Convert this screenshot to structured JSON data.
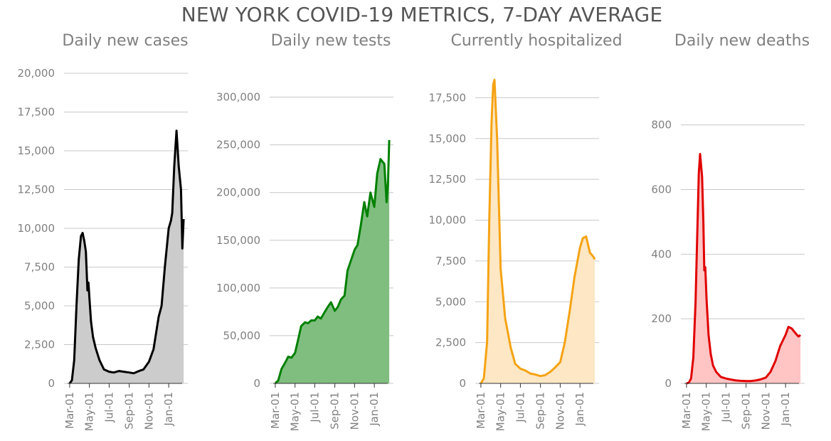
{
  "figure_title": "NEW YORK COVID-19 METRICS, 7-DAY AVERAGE",
  "chart_data": [
    {
      "type": "area",
      "title": "Daily new cases",
      "color": "#000000",
      "fill": "#cccccc",
      "ylim": [
        0,
        20000
      ],
      "yticks": [
        0,
        2500,
        5000,
        7500,
        10000,
        12500,
        15000,
        17500,
        20000
      ],
      "ytick_labels": [
        "0",
        "2,500",
        "5,000",
        "7,500",
        "10,000",
        "12,500",
        "15,000",
        "17,500",
        "20,000"
      ],
      "xticks": [
        "Mar-01",
        "May-01",
        "Jul-01",
        "Sep-01",
        "Nov-01",
        "Jan-01"
      ],
      "series": [
        {
          "x": [
            "2020-03-01",
            "2020-03-08",
            "2020-03-15",
            "2020-03-22",
            "2020-03-29",
            "2020-04-05",
            "2020-04-10",
            "2020-04-15",
            "2020-04-20",
            "2020-04-25",
            "2020-04-28",
            "2020-05-01",
            "2020-05-06",
            "2020-05-12",
            "2020-05-20",
            "2020-06-01",
            "2020-06-15",
            "2020-07-01",
            "2020-07-15",
            "2020-08-01",
            "2020-08-15",
            "2020-09-01",
            "2020-09-15",
            "2020-10-01",
            "2020-10-15",
            "2020-11-01",
            "2020-11-15",
            "2020-12-01",
            "2020-12-10",
            "2020-12-20",
            "2021-01-01",
            "2021-01-08",
            "2021-01-12",
            "2021-01-18",
            "2021-01-25",
            "2021-02-01",
            "2021-02-08",
            "2021-02-12",
            "2021-02-16"
          ],
          "y": [
            0,
            200,
            1500,
            5000,
            8000,
            9500,
            9700,
            9200,
            8500,
            6000,
            6500,
            5500,
            4000,
            3000,
            2300,
            1500,
            900,
            750,
            700,
            800,
            750,
            700,
            650,
            800,
            900,
            1400,
            2200,
            4300,
            5000,
            7500,
            10000,
            10500,
            11000,
            14000,
            16300,
            14000,
            12500,
            8700,
            10600
          ]
        }
      ]
    },
    {
      "type": "area",
      "title": "Daily new tests",
      "color": "#008000",
      "fill": "#80be80",
      "ylim": [
        0,
        325000
      ],
      "yticks": [
        0,
        50000,
        100000,
        150000,
        200000,
        250000,
        300000
      ],
      "ytick_labels": [
        "0",
        "50,000",
        "100,000",
        "150,000",
        "200,000",
        "250,000",
        "300,000"
      ],
      "xticks": [
        "Mar-01",
        "May-01",
        "Jul-01",
        "Sep-01",
        "Nov-01",
        "Jan-01"
      ],
      "series": [
        {
          "x": [
            "2020-03-01",
            "2020-03-10",
            "2020-03-20",
            "2020-04-01",
            "2020-04-10",
            "2020-04-20",
            "2020-05-01",
            "2020-05-10",
            "2020-05-20",
            "2020-06-01",
            "2020-06-10",
            "2020-06-20",
            "2020-07-01",
            "2020-07-10",
            "2020-07-20",
            "2020-08-01",
            "2020-08-10",
            "2020-08-20",
            "2020-09-01",
            "2020-09-10",
            "2020-09-20",
            "2020-10-01",
            "2020-10-10",
            "2020-10-20",
            "2020-11-01",
            "2020-11-10",
            "2020-11-20",
            "2020-12-01",
            "2020-12-10",
            "2020-12-20",
            "2021-01-01",
            "2021-01-10",
            "2021-01-20",
            "2021-02-01",
            "2021-02-08",
            "2021-02-12",
            "2021-02-16"
          ],
          "y": [
            0,
            3000,
            15000,
            22000,
            28000,
            27000,
            32000,
            45000,
            60000,
            64000,
            63000,
            66000,
            66000,
            70000,
            68000,
            75000,
            80000,
            85000,
            76000,
            80000,
            88000,
            92000,
            118000,
            128000,
            140000,
            145000,
            165000,
            190000,
            175000,
            200000,
            185000,
            220000,
            235000,
            230000,
            190000,
            210000,
            255000
          ]
        }
      ]
    },
    {
      "type": "area",
      "title": "Currently hospitalized",
      "color": "#f5a314",
      "fill": "#fde7c4",
      "ylim": [
        0,
        19000
      ],
      "yticks": [
        0,
        2500,
        5000,
        7500,
        10000,
        12500,
        15000,
        17500
      ],
      "ytick_labels": [
        "0",
        "2,500",
        "5,000",
        "7,500",
        "10,000",
        "12,500",
        "15,000",
        "17,500"
      ],
      "xticks": [
        "Mar-01",
        "May-01",
        "Jul-01",
        "Sep-01",
        "Nov-01",
        "Jan-01"
      ],
      "series": [
        {
          "x": [
            "2020-03-01",
            "2020-03-10",
            "2020-03-20",
            "2020-03-27",
            "2020-04-03",
            "2020-04-08",
            "2020-04-12",
            "2020-04-20",
            "2020-05-01",
            "2020-05-15",
            "2020-06-01",
            "2020-06-15",
            "2020-07-01",
            "2020-07-15",
            "2020-08-01",
            "2020-08-15",
            "2020-09-01",
            "2020-09-15",
            "2020-10-01",
            "2020-10-15",
            "2020-11-01",
            "2020-11-15",
            "2020-12-01",
            "2020-12-15",
            "2021-01-01",
            "2021-01-10",
            "2021-01-20",
            "2021-02-01",
            "2021-02-10",
            "2021-02-16"
          ],
          "y": [
            0,
            300,
            2500,
            10000,
            16000,
            18300,
            18600,
            15000,
            7000,
            4000,
            2200,
            1200,
            900,
            800,
            600,
            550,
            450,
            500,
            700,
            950,
            1300,
            2500,
            4500,
            6500,
            8300,
            8900,
            9000,
            8000,
            7800,
            7600
          ]
        }
      ]
    },
    {
      "type": "area",
      "title": "Daily new deaths",
      "color": "#e00000",
      "fill": "#ffc4c4",
      "ylim": [
        0,
        960
      ],
      "yticks": [
        0,
        200,
        400,
        600,
        800
      ],
      "ytick_labels": [
        "0",
        "200",
        "400",
        "600",
        "800"
      ],
      "xticks": [
        "Mar-01",
        "May-01",
        "Jul-01",
        "Sep-01",
        "Nov-01",
        "Jan-01"
      ],
      "series": [
        {
          "x": [
            "2020-03-01",
            "2020-03-08",
            "2020-03-15",
            "2020-03-22",
            "2020-03-29",
            "2020-04-03",
            "2020-04-08",
            "2020-04-12",
            "2020-04-18",
            "2020-04-22",
            "2020-04-25",
            "2020-04-28",
            "2020-05-02",
            "2020-05-08",
            "2020-05-15",
            "2020-05-22",
            "2020-06-01",
            "2020-06-15",
            "2020-07-01",
            "2020-07-15",
            "2020-08-01",
            "2020-08-15",
            "2020-09-01",
            "2020-09-15",
            "2020-10-01",
            "2020-10-15",
            "2020-11-01",
            "2020-11-15",
            "2020-12-01",
            "2020-12-15",
            "2021-01-01",
            "2021-01-10",
            "2021-01-20",
            "2021-02-01",
            "2021-02-10",
            "2021-02-16"
          ],
          "y": [
            0,
            2,
            15,
            80,
            250,
            450,
            650,
            710,
            640,
            500,
            350,
            360,
            260,
            150,
            90,
            55,
            35,
            20,
            15,
            12,
            9,
            8,
            7,
            7,
            9,
            12,
            18,
            35,
            70,
            115,
            150,
            175,
            170,
            155,
            145,
            150
          ]
        }
      ]
    }
  ]
}
